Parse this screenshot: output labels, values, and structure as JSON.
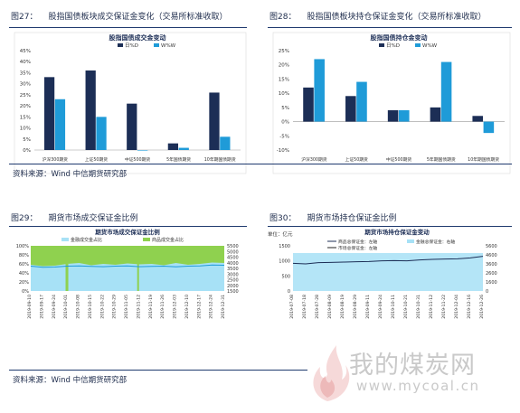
{
  "figures": {
    "fig27": {
      "number": "图27：",
      "title": "股指国债板块成交保证金变化（交易所标准收取）"
    },
    "fig28": {
      "number": "图28：",
      "title": "股指国债板块持仓保证金变化（交易所标准收取）"
    },
    "fig29": {
      "number": "图29：",
      "title": "期货市场成交保证金比例"
    },
    "fig30": {
      "number": "图30：",
      "title": "期货市场持仓保证金比例"
    }
  },
  "sources": {
    "top": "资料来源：Wind  中信期货研究部",
    "bottom": "资料来源：Wind  中信期货研究部"
  },
  "watermark": {
    "cn": "我的煤炭网",
    "url": "www.mycoal.cn"
  },
  "chart_data": [
    {
      "id": "fig27",
      "type": "bar",
      "title": "股指国债成交金变动",
      "categories": [
        "沪深300期货",
        "上证50期货",
        "中证500期货",
        "5年国债期货",
        "10年期国债期货"
      ],
      "series": [
        {
          "name": "日%D",
          "color": "#1c2e56",
          "values": [
            33,
            36,
            21,
            3,
            26
          ]
        },
        {
          "name": "W%W",
          "color": "#1f9bd8",
          "values": [
            23,
            15,
            0,
            1,
            6
          ]
        }
      ],
      "ylim": [
        0,
        45
      ],
      "yticks": [
        0,
        5,
        10,
        15,
        20,
        25,
        30,
        35,
        40,
        45
      ],
      "ytick_labels": [
        "0%",
        "5%",
        "10%",
        "15%",
        "20%",
        "25%",
        "30%",
        "35%",
        "40%",
        "45%"
      ],
      "legend": "top"
    },
    {
      "id": "fig28",
      "type": "bar",
      "title": "股指国债持仓金变动",
      "categories": [
        "沪深300期货",
        "上证50期货",
        "中证500期货",
        "5年期国债期货",
        "10年期国债期货"
      ],
      "series": [
        {
          "name": "日%D",
          "color": "#1c2e56",
          "values": [
            12,
            9,
            4,
            5,
            2
          ]
        },
        {
          "name": "W%W",
          "color": "#1f9bd8",
          "values": [
            22,
            14,
            4,
            21,
            -4
          ]
        }
      ],
      "ylim": [
        -10,
        25
      ],
      "yticks": [
        -10,
        -5,
        0,
        5,
        10,
        15,
        20,
        25
      ],
      "ytick_labels": [
        "-10%",
        "-5%",
        "0%",
        "5%",
        "10%",
        "15%",
        "20%",
        "25%"
      ],
      "legend": "top"
    },
    {
      "id": "fig29",
      "type": "area",
      "title": "期货市场成交保证金比例",
      "series": [
        {
          "name": "金融成交金占比",
          "color": "#a7e1f6",
          "axis": "left",
          "style": "area"
        },
        {
          "name": "商品成交金占比",
          "color": "#8fd14f",
          "axis": "left",
          "style": "area"
        },
        {
          "name": "",
          "color": "#1f9bd8",
          "axis": "right",
          "style": "line"
        }
      ],
      "x": [
        "2019-09-10",
        "2019-09-17",
        "2019-09-24",
        "2019-10-01",
        "2019-10-08",
        "2019-10-15",
        "2019-10-22",
        "2019-10-29",
        "2019-11-05",
        "2019-11-12",
        "2019-11-19",
        "2019-11-26",
        "2019-12-03",
        "2019-12-10",
        "2019-12-17",
        "2019-12-24",
        "2019-12-31"
      ],
      "x_tick_labels": [
        "2019-09-10",
        "2019-09-17",
        "2019-09-24",
        "2019-10-01",
        "2019-10-08",
        "2019-10-15",
        "2019-10-22",
        "2019-10-29",
        "2019-11-05",
        "2019-11-12",
        "2019-11-19",
        "2019-11-26",
        "2019-12-03",
        "2019-12-10",
        "2019-12-17",
        "2019-12-24",
        "2019-12-31"
      ],
      "financial_share": [
        0.58,
        0.55,
        0.56,
        0.6,
        0.62,
        0.57,
        0.6,
        0.58,
        0.61,
        0.59,
        0.6,
        0.57,
        0.62,
        0.58,
        0.6,
        0.63,
        0.62
      ],
      "total_line": [
        3700,
        3600,
        3620,
        3700,
        3720,
        3680,
        3650,
        3700,
        3720,
        3650,
        3680,
        3700,
        3640,
        3700,
        3720,
        3800,
        3780
      ],
      "ylim_left": [
        0,
        100
      ],
      "yticks_left": [
        "0%",
        "20%",
        "40%",
        "60%",
        "80%",
        "100%"
      ],
      "ylim_right": [
        1500,
        5500
      ],
      "yticks_right": [
        "1500",
        "2000",
        "2500",
        "3000",
        "3500",
        "4000",
        "4500",
        "5000",
        "5500"
      ]
    },
    {
      "id": "fig30",
      "type": "line",
      "title": "期货市场持仓保证金变动",
      "unit_label": "单位：亿元",
      "series": [
        {
          "name": "商品总保证金：左轴",
          "color": "#1c2e56",
          "axis": "left",
          "style": "line"
        },
        {
          "name": "市场总保证金：左轴",
          "color": "#222222",
          "axis": "left",
          "style": "line"
        },
        {
          "name": "金融总保证金：右轴",
          "color": "#a7e1f6",
          "axis": "right",
          "style": "area"
        }
      ],
      "x_tick_labels": [
        "2019-07-08",
        "2019-07-18",
        "2019-07-28",
        "2019-08-09",
        "2019-08-19",
        "2019-08-29",
        "2019-09-11",
        "2019-09-24",
        "2019-10-11",
        "2019-10-21",
        "2019-10-31",
        "2019-11-12",
        "2019-11-22",
        "2019-12-04",
        "2019-12-16",
        "2019-12-26"
      ],
      "commodity_line": [
        920,
        900,
        940,
        950,
        960,
        970,
        980,
        1000,
        1010,
        1000,
        1030,
        1050,
        1060,
        1070,
        1100,
        1150
      ],
      "ylim_left": [
        0,
        1500
      ],
      "yticks_left": [
        "0",
        "500",
        "1000",
        "1500"
      ],
      "ylim_right": [
        0,
        5600
      ],
      "yticks_right": [
        "0",
        "1600",
        "2600",
        "3600",
        "4600",
        "5600"
      ]
    }
  ]
}
